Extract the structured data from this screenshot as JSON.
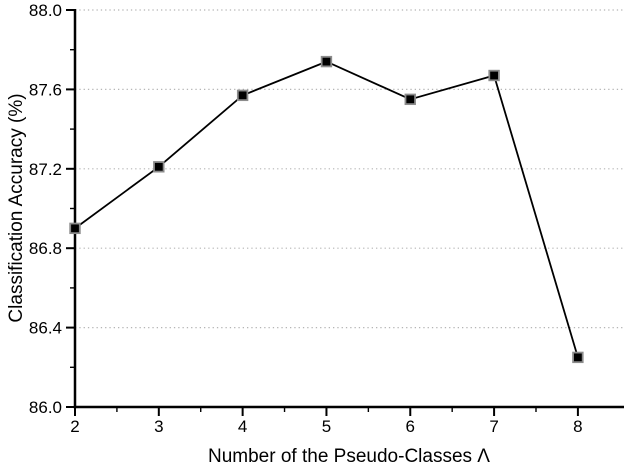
{
  "chart_data": {
    "type": "line",
    "title": "",
    "xlabel": "Number of the Pseudo-Classes Λ",
    "ylabel": "Classification Accuracy (%)",
    "x": [
      2,
      3,
      4,
      5,
      6,
      7,
      8
    ],
    "series": [
      {
        "name": "classification-accuracy",
        "values": [
          86.9,
          87.21,
          87.57,
          87.74,
          87.55,
          87.67,
          86.25
        ]
      }
    ],
    "xlim": [
      2,
      8.55
    ],
    "ylim": [
      86.0,
      88.0
    ],
    "xticks": [
      2,
      3,
      4,
      5,
      6,
      7,
      8
    ],
    "xtick_labels": [
      "2",
      "3",
      "4",
      "5",
      "6",
      "7",
      "8"
    ],
    "x_minor_ticks": [
      2.5,
      3.5,
      4.5,
      5.5,
      6.5,
      7.5
    ],
    "yticks": [
      86.0,
      86.4,
      86.8,
      87.2,
      87.6,
      88.0
    ],
    "ytick_labels": [
      "86.0",
      "86.4",
      "86.8",
      "87.2",
      "87.6",
      "88.0"
    ],
    "y_minor_ticks": [
      86.2,
      86.6,
      87.0,
      87.4,
      87.8
    ],
    "grid": "horizontal-dotted",
    "legend": "none",
    "line_color": "#000000",
    "marker": "filled-square",
    "marker_color": "#000000",
    "marker_edge_color": "#8c8c8c",
    "grid_color": "#b5b5b5",
    "axis_color": "#000000",
    "background_color": "#ffffff"
  }
}
